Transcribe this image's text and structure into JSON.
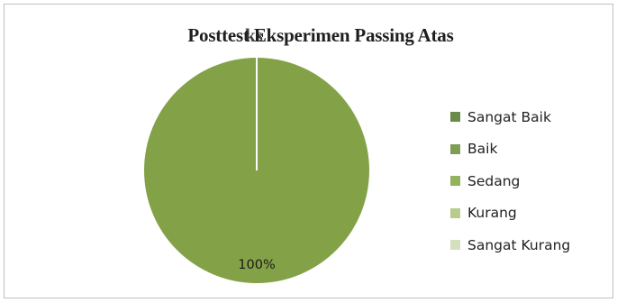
{
  "chart_data": {
    "type": "pie",
    "title": "Posttest Eksperimen Passing Atas",
    "title_overlap_fragment": "ks",
    "categories": [
      "Sangat Baik",
      "Baik",
      "Sedang",
      "Kurang",
      "Sangat Kurang"
    ],
    "values": [
      0,
      100,
      0,
      0,
      0
    ],
    "data_labels": [
      "",
      "100%",
      "",
      "",
      ""
    ],
    "colors": [
      "#6a8a47",
      "#7f9e55",
      "#93b35e",
      "#b7cc8e",
      "#d3dfbf"
    ],
    "slice_fill": "#83a247",
    "slice_border": "#ffffff",
    "legend_position": "right"
  }
}
